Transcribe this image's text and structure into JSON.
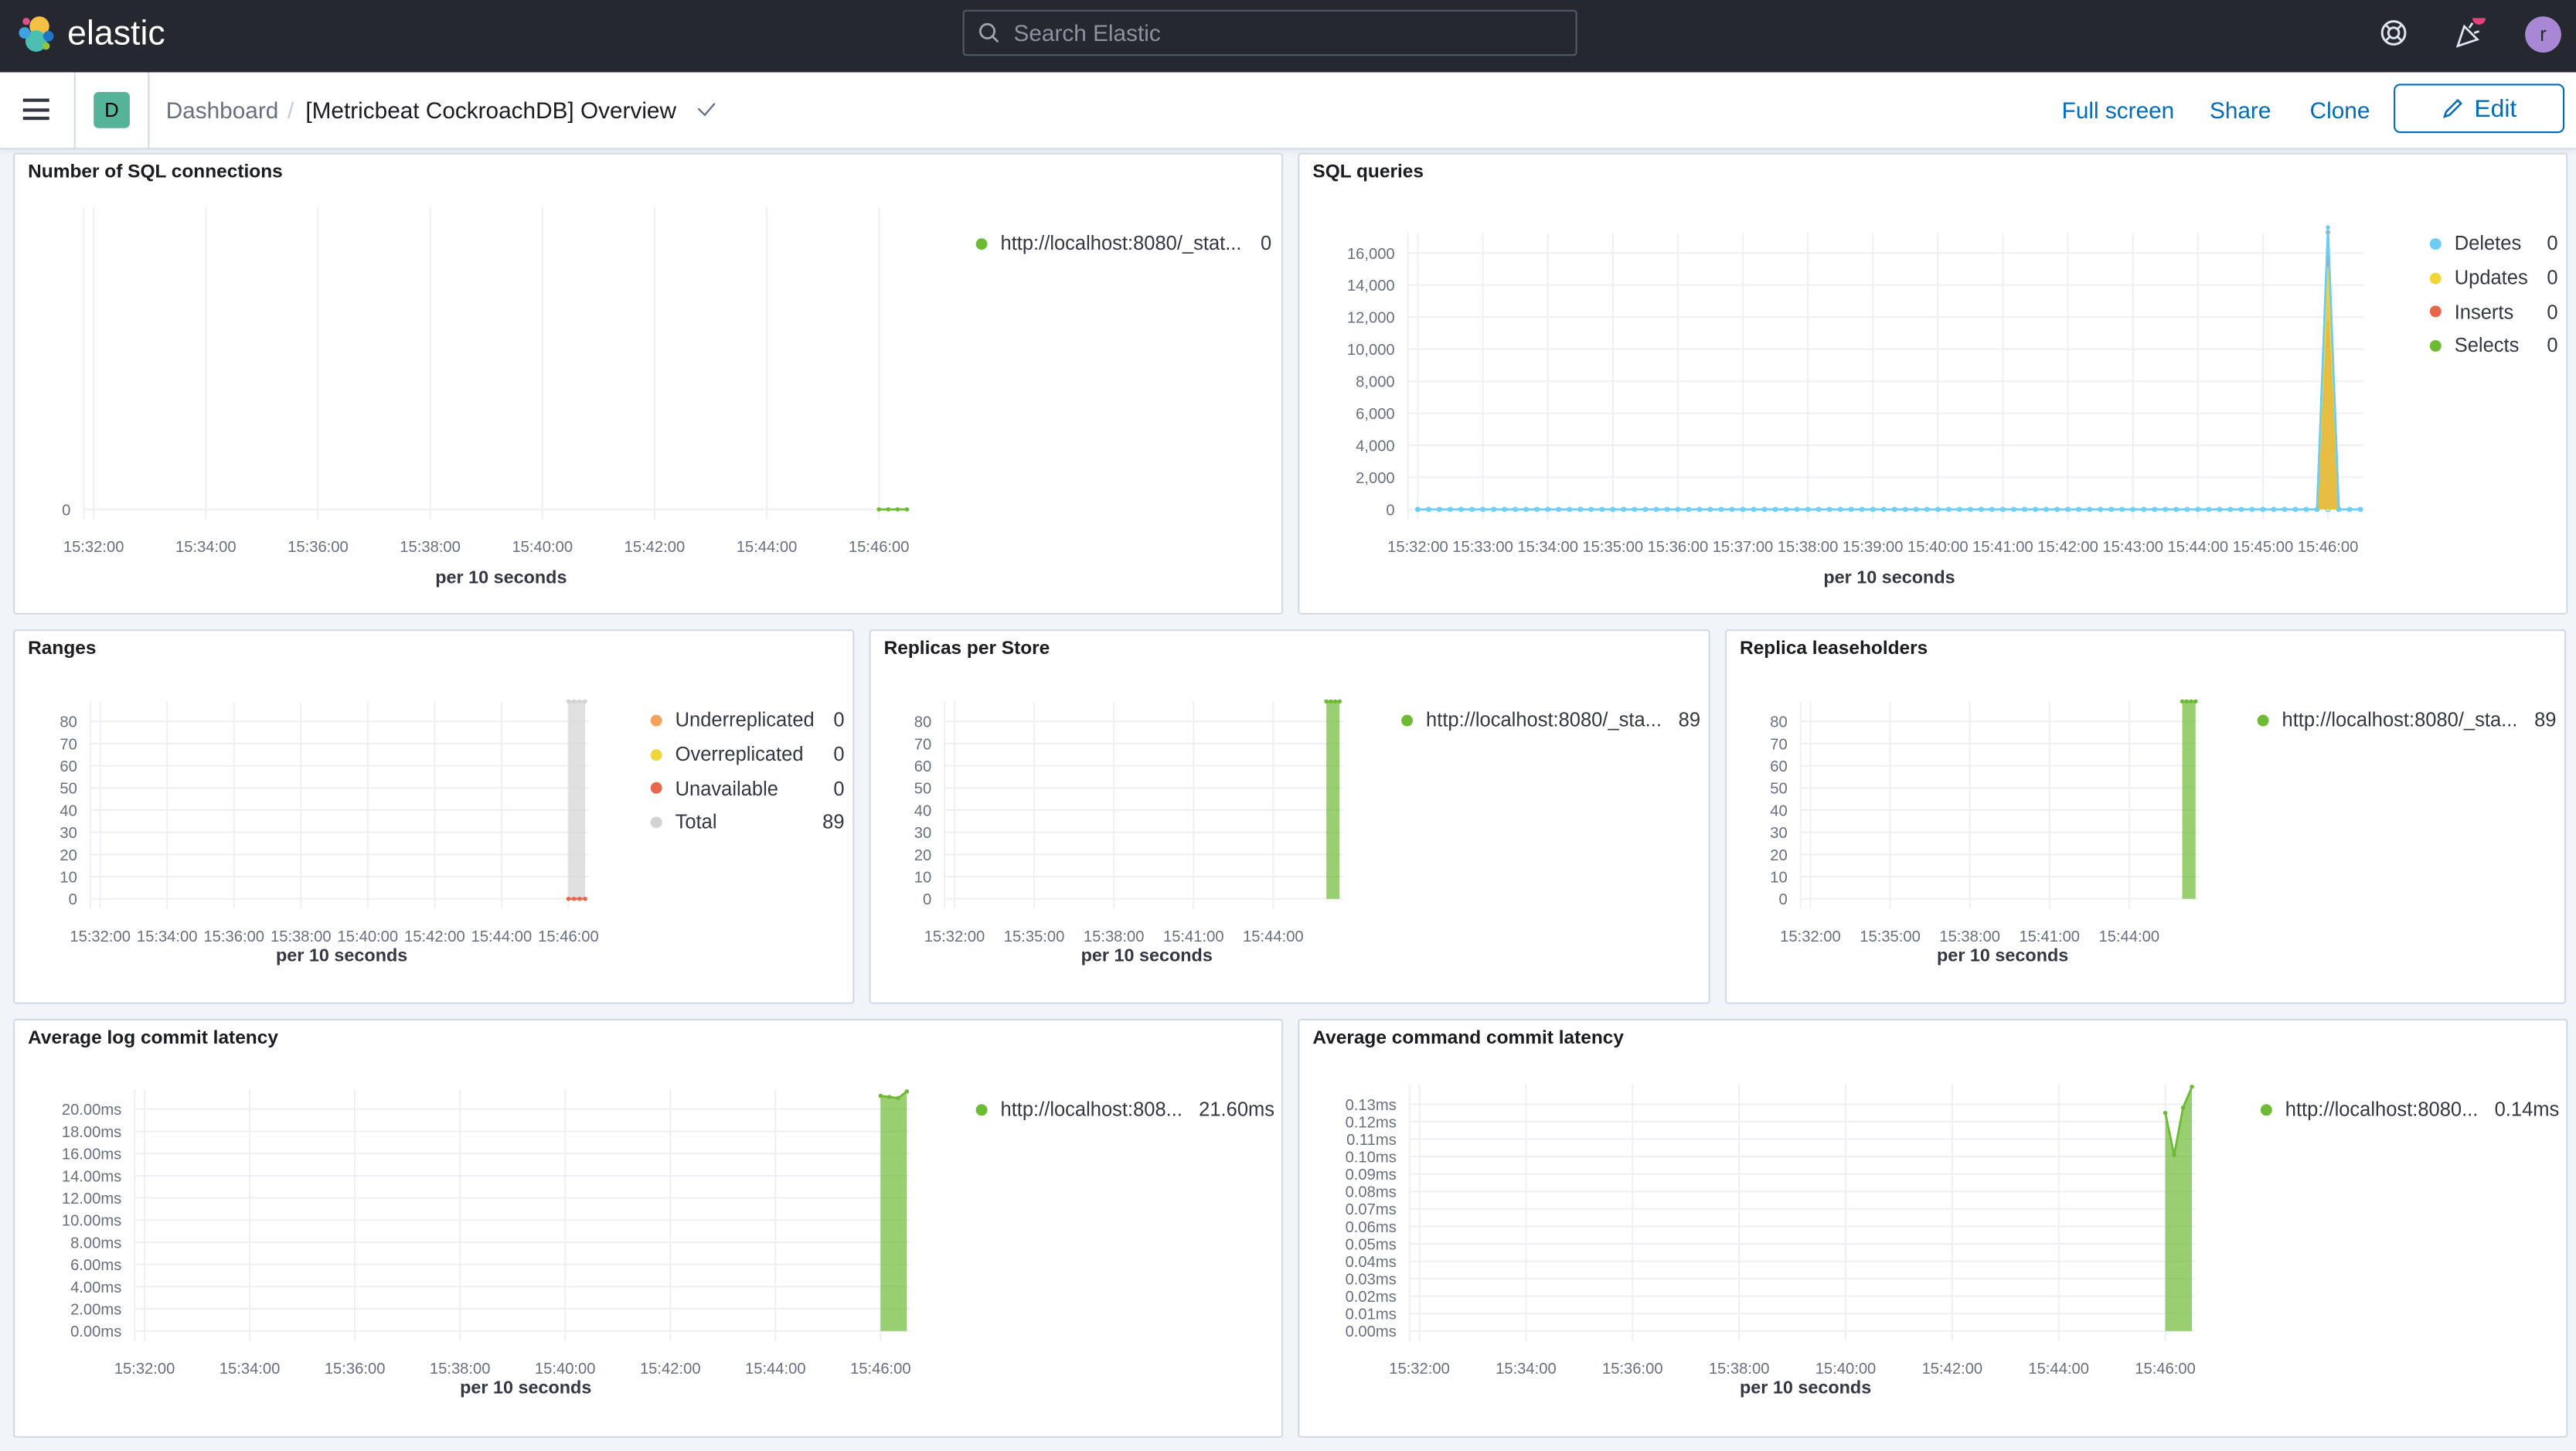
{
  "header": {
    "brand": "elastic",
    "search_placeholder": "Search Elastic",
    "avatar_initial": "r",
    "icons": [
      "help-icon",
      "news-feed-icon"
    ],
    "notification_color": "#e7664c"
  },
  "subheader": {
    "space_initial": "D",
    "breadcrumb_root": "Dashboard",
    "breadcrumb_current": "[Metricbeat CockroachDB] Overview",
    "full_screen": "Full screen",
    "share": "Share",
    "clone": "Clone",
    "edit": "Edit"
  },
  "panels": [
    {
      "title": "Number of SQL connections",
      "legend": [
        {
          "label": "http://localhost:8080/_stat...",
          "value": "0",
          "color": "#6dba34"
        }
      ],
      "chart_data": {
        "type": "line",
        "xlabel": "per 10 seconds",
        "yticks": [
          "0"
        ],
        "ytick_values": [
          0
        ],
        "ylim": [
          0,
          1
        ],
        "xticks": [
          "15:32:00",
          "15:34:00",
          "15:36:00",
          "15:38:00",
          "15:40:00",
          "15:42:00",
          "15:44:00",
          "15:46:00"
        ],
        "series": [
          {
            "name": "http://localhost:8080/_stat...",
            "color": "#6dba34",
            "style": "line",
            "points": [
              [
                "15:46:00",
                0
              ],
              [
                "15:46:10",
                0
              ],
              [
                "15:46:20",
                0
              ],
              [
                "15:46:30",
                0
              ]
            ]
          }
        ]
      }
    },
    {
      "title": "SQL queries",
      "legend": [
        {
          "label": "Deletes",
          "value": "0",
          "color": "#6dccf1"
        },
        {
          "label": "Updates",
          "value": "0",
          "color": "#f1d53c"
        },
        {
          "label": "Inserts",
          "value": "0",
          "color": "#e7664c"
        },
        {
          "label": "Selects",
          "value": "0",
          "color": "#6dba34"
        }
      ],
      "chart_data": {
        "type": "area",
        "xlabel": "per 10 seconds",
        "yticks": [
          "0",
          "2,000",
          "4,000",
          "6,000",
          "8,000",
          "10,000",
          "12,000",
          "14,000",
          "16,000"
        ],
        "ytick_values": [
          0,
          2000,
          4000,
          6000,
          8000,
          10000,
          12000,
          14000,
          16000
        ],
        "ylim": [
          0,
          16000
        ],
        "xticks": [
          "15:32:00",
          "15:33:00",
          "15:34:00",
          "15:35:00",
          "15:36:00",
          "15:37:00",
          "15:38:00",
          "15:39:00",
          "15:40:00",
          "15:41:00",
          "15:42:00",
          "15:43:00",
          "15:44:00",
          "15:45:00",
          "15:46:00"
        ],
        "series": [
          {
            "name": "Selects",
            "color": "#6dba34",
            "style": "area",
            "points": [
              [
                "15:45:50",
                0
              ],
              [
                "15:46:00",
                11600
              ],
              [
                "15:46:10",
                0
              ]
            ]
          },
          {
            "name": "Inserts",
            "color": "#e7664c",
            "style": "area",
            "points": [
              [
                "15:45:50",
                0
              ],
              [
                "15:46:00",
                17300
              ],
              [
                "15:46:10",
                0
              ]
            ]
          },
          {
            "name": "Updates",
            "color": "#f1d53c",
            "style": "area",
            "points": [
              [
                "15:45:50",
                0
              ],
              [
                "15:46:00",
                15000
              ],
              [
                "15:46:10",
                0
              ]
            ]
          },
          {
            "name": "Deletes",
            "color": "#6dccf1",
            "style": "spikeline",
            "points": [
              [
                "15:32:00",
                0
              ],
              [
                "15:45:50",
                0
              ],
              [
                "15:46:00",
                17600
              ],
              [
                "15:46:10",
                0
              ],
              [
                "15:46:30",
                0
              ]
            ]
          }
        ]
      }
    },
    {
      "title": "Ranges",
      "legend": [
        {
          "label": "Underreplicated",
          "value": "0",
          "color": "#f5a35c"
        },
        {
          "label": "Overreplicated",
          "value": "0",
          "color": "#f1d53c"
        },
        {
          "label": "Unavailable",
          "value": "0",
          "color": "#e7664c"
        },
        {
          "label": "Total",
          "value": "89",
          "color": "#d3d3d3"
        }
      ],
      "chart_data": {
        "type": "area",
        "xlabel": "per 10 seconds",
        "yticks": [
          "0",
          "10",
          "20",
          "30",
          "40",
          "50",
          "60",
          "70",
          "80"
        ],
        "ytick_values": [
          0,
          10,
          20,
          30,
          40,
          50,
          60,
          70,
          80
        ],
        "ylim": [
          0,
          80
        ],
        "xticks": [
          "15:32:00",
          "15:34:00",
          "15:36:00",
          "15:38:00",
          "15:40:00",
          "15:42:00",
          "15:44:00",
          "15:46:00"
        ],
        "series": [
          {
            "name": "Total",
            "color": "#d3d3d3",
            "style": "area",
            "points": [
              [
                "15:46:00",
                89
              ],
              [
                "15:46:10",
                89
              ],
              [
                "15:46:20",
                89
              ],
              [
                "15:46:30",
                89
              ]
            ]
          },
          {
            "name": "Unavailable",
            "color": "#e7664c",
            "style": "line",
            "points": [
              [
                "15:46:00",
                0
              ],
              [
                "15:46:10",
                0
              ],
              [
                "15:46:20",
                0
              ],
              [
                "15:46:30",
                0
              ]
            ]
          }
        ]
      }
    },
    {
      "title": "Replicas per Store",
      "legend": [
        {
          "label": "http://localhost:8080/_sta...",
          "value": "89",
          "color": "#6dba34"
        }
      ],
      "chart_data": {
        "type": "area",
        "xlabel": "per 10 seconds",
        "yticks": [
          "0",
          "10",
          "20",
          "30",
          "40",
          "50",
          "60",
          "70",
          "80"
        ],
        "ytick_values": [
          0,
          10,
          20,
          30,
          40,
          50,
          60,
          70,
          80
        ],
        "ylim": [
          0,
          80
        ],
        "xticks": [
          "15:32:00",
          "15:35:00",
          "15:38:00",
          "15:41:00",
          "15:44:00"
        ],
        "series": [
          {
            "name": "http://localhost:8080/_sta...",
            "color": "#6dba34",
            "style": "area",
            "points": [
              [
                "15:46:00",
                89
              ],
              [
                "15:46:10",
                89
              ],
              [
                "15:46:20",
                89
              ],
              [
                "15:46:30",
                89
              ]
            ]
          }
        ]
      }
    },
    {
      "title": "Replica leaseholders",
      "legend": [
        {
          "label": "http://localhost:8080/_sta...",
          "value": "89",
          "color": "#6dba34"
        }
      ],
      "chart_data": {
        "type": "area",
        "xlabel": "per 10 seconds",
        "yticks": [
          "0",
          "10",
          "20",
          "30",
          "40",
          "50",
          "60",
          "70",
          "80"
        ],
        "ytick_values": [
          0,
          10,
          20,
          30,
          40,
          50,
          60,
          70,
          80
        ],
        "ylim": [
          0,
          80
        ],
        "xticks": [
          "15:32:00",
          "15:35:00",
          "15:38:00",
          "15:41:00",
          "15:44:00"
        ],
        "series": [
          {
            "name": "http://localhost:8080/_sta...",
            "color": "#6dba34",
            "style": "area",
            "points": [
              [
                "15:46:00",
                89
              ],
              [
                "15:46:10",
                89
              ],
              [
                "15:46:20",
                89
              ],
              [
                "15:46:30",
                89
              ]
            ]
          }
        ]
      }
    },
    {
      "title": "Average log commit latency",
      "legend": [
        {
          "label": "http://localhost:808...",
          "value": "21.60ms",
          "color": "#6dba34"
        }
      ],
      "chart_data": {
        "type": "area",
        "xlabel": "per 10 seconds",
        "yticks": [
          "0.00ms",
          "2.00ms",
          "4.00ms",
          "6.00ms",
          "8.00ms",
          "10.00ms",
          "12.00ms",
          "14.00ms",
          "16.00ms",
          "18.00ms",
          "20.00ms"
        ],
        "ytick_values": [
          0,
          2,
          4,
          6,
          8,
          10,
          12,
          14,
          16,
          18,
          20
        ],
        "ylim": [
          0,
          20
        ],
        "xticks": [
          "15:32:00",
          "15:34:00",
          "15:36:00",
          "15:38:00",
          "15:40:00",
          "15:42:00",
          "15:44:00",
          "15:46:00"
        ],
        "series": [
          {
            "name": "http://localhost:808...",
            "color": "#6dba34",
            "style": "area",
            "points": [
              [
                "15:46:00",
                21.2
              ],
              [
                "15:46:10",
                21.1
              ],
              [
                "15:46:20",
                21.0
              ],
              [
                "15:46:30",
                21.6
              ]
            ]
          }
        ]
      }
    },
    {
      "title": "Average command commit latency",
      "legend": [
        {
          "label": "http://localhost:8080...",
          "value": "0.14ms",
          "color": "#6dba34"
        }
      ],
      "chart_data": {
        "type": "area",
        "xlabel": "per 10 seconds",
        "yticks": [
          "0.00ms",
          "0.01ms",
          "0.02ms",
          "0.03ms",
          "0.04ms",
          "0.05ms",
          "0.06ms",
          "0.07ms",
          "0.08ms",
          "0.09ms",
          "0.10ms",
          "0.11ms",
          "0.12ms",
          "0.13ms"
        ],
        "ytick_values": [
          0,
          0.01,
          0.02,
          0.03,
          0.04,
          0.05,
          0.06,
          0.07,
          0.08,
          0.09,
          0.1,
          0.11,
          0.12,
          0.13
        ],
        "ylim": [
          0,
          0.13
        ],
        "xticks": [
          "15:32:00",
          "15:34:00",
          "15:36:00",
          "15:38:00",
          "15:40:00",
          "15:42:00",
          "15:44:00",
          "15:46:00"
        ],
        "series": [
          {
            "name": "http://localhost:8080...",
            "color": "#6dba34",
            "style": "area",
            "points": [
              [
                "15:46:00",
                0.125
              ],
              [
                "15:46:10",
                0.101
              ],
              [
                "15:46:20",
                0.128
              ],
              [
                "15:46:30",
                0.14
              ]
            ]
          }
        ]
      }
    }
  ]
}
